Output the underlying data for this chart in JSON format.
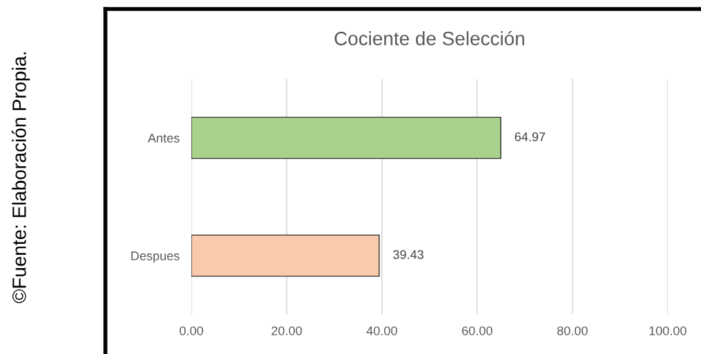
{
  "chart_data": {
    "type": "bar",
    "orientation": "horizontal",
    "title": "Cociente de Selección",
    "categories": [
      "Antes",
      "Despues"
    ],
    "values": [
      64.97,
      39.43
    ],
    "colors": [
      "#a9d18e",
      "#f8cbad"
    ],
    "xlim": [
      0,
      100
    ],
    "xticks": [
      {
        "value": 0,
        "label": "0.00"
      },
      {
        "value": 20,
        "label": "20.00"
      },
      {
        "value": 40,
        "label": "40.00"
      },
      {
        "value": 60,
        "label": "60.00"
      },
      {
        "value": 80,
        "label": "80.00"
      },
      {
        "value": 100,
        "label": "100.00"
      }
    ],
    "grid": "x",
    "data_labels": true,
    "annotations": [
      "©Fuente: Elaboración Propia."
    ]
  }
}
